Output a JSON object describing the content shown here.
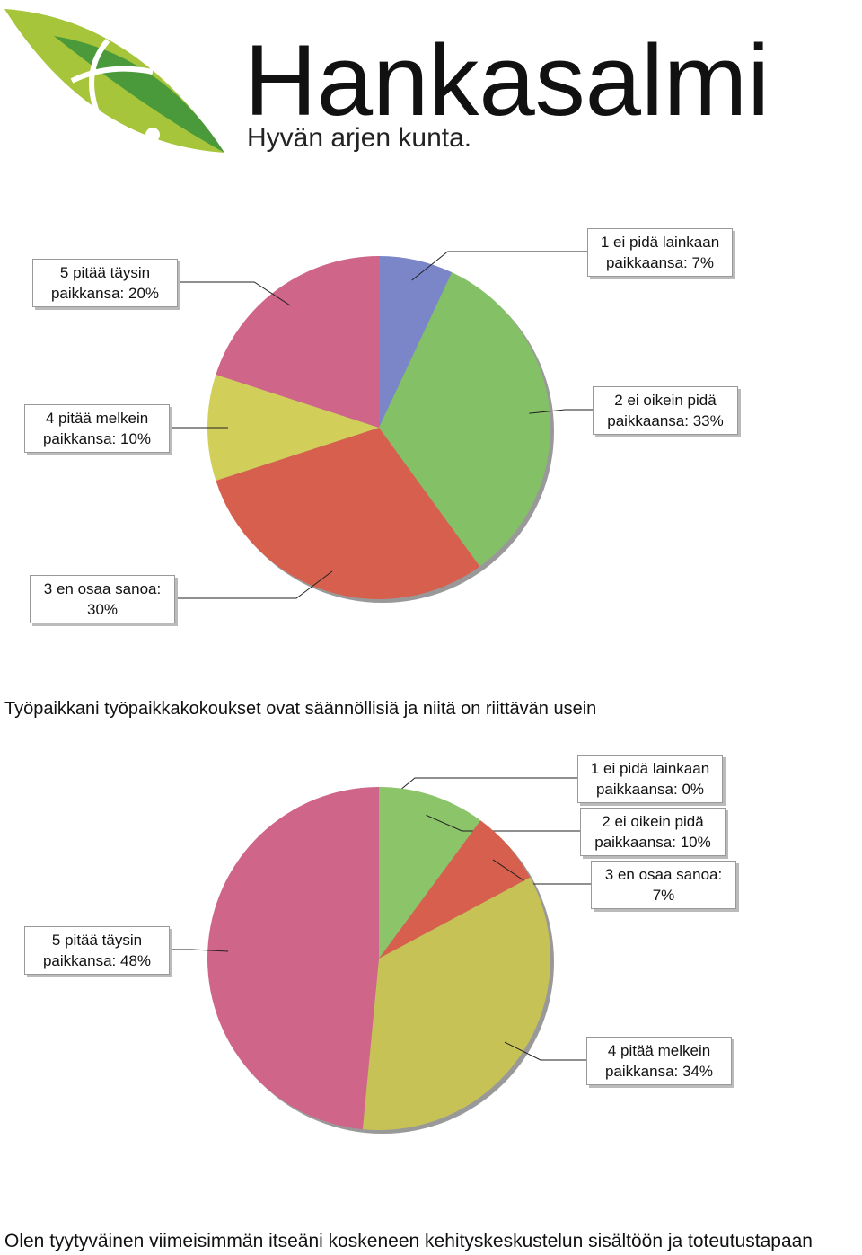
{
  "logo": {
    "name": "Hankasalmi",
    "slogan": "Hyvän arjen kunta."
  },
  "chart_data": [
    {
      "type": "pie",
      "categories": [
        "1 ei pidä lainkaan paikkaansa:",
        "2 ei oikein pidä paikkaansa:",
        "3 en osaa sanoa:",
        "4 pitää melkein paikkansa:",
        "5 pitää täysin paikkansa:"
      ],
      "values": [
        7,
        33,
        30,
        10,
        20
      ],
      "value_labels": [
        "7%",
        "33%",
        "30%",
        "10%",
        "20%"
      ],
      "colors": [
        "#7a86c8",
        "#84c066",
        "#d6604d",
        "#d1cf5a",
        "#d0658a"
      ]
    },
    {
      "type": "pie",
      "title": "Työpaikkani työpaikkakokoukset ovat säännöllisiä ja niitä on riittävän usein",
      "categories": [
        "1 ei pidä lainkaan paikkaansa:",
        "2 ei oikein pidä paikkaansa:",
        "3 en osaa sanoa:",
        "4 pitää melkein paikkansa:",
        "5 pitää täysin paikkansa:"
      ],
      "values": [
        0,
        10,
        7,
        34,
        48
      ],
      "value_labels": [
        "0%",
        "10%",
        "7%",
        "34%",
        "48%"
      ],
      "colors": [
        "#7a86c8",
        "#8cc46a",
        "#d6604d",
        "#c7c255",
        "#d0658a"
      ]
    }
  ],
  "footer_title": "Olen tyytyväinen viimeisimmän itseäni koskeneen kehityskeskustelun sisältöön ja toteutustapaan"
}
